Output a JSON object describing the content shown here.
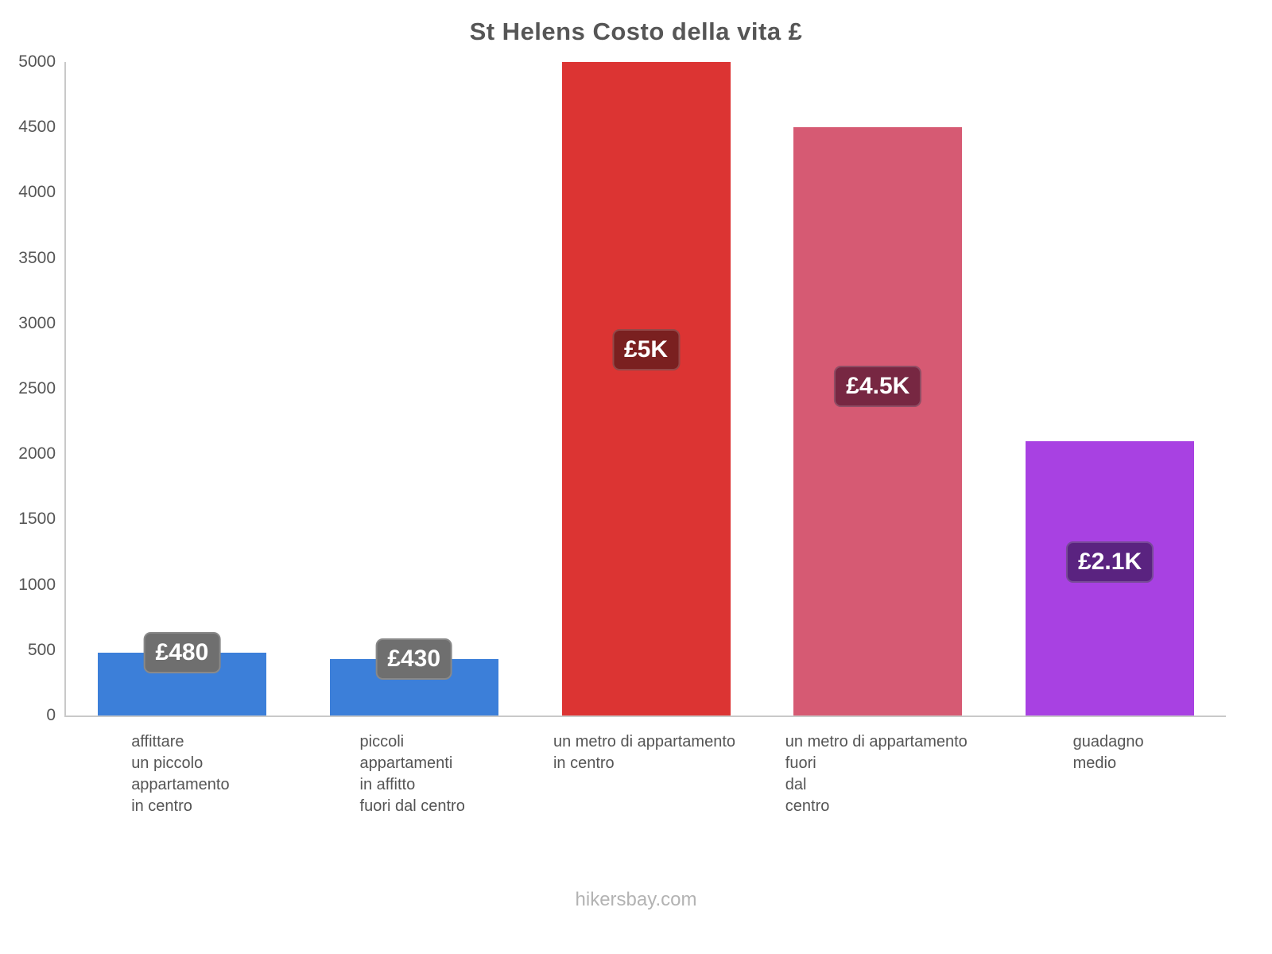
{
  "title": "St Helens Costo della vita £",
  "footer": "hikersbay.com",
  "chart_data": {
    "type": "bar",
    "title": "St Helens Costo della vita £",
    "categories": [
      "affittare\nun piccolo\nappartamento\nin centro",
      "piccoli\nappartamenti\nin affitto\nfuori dal centro",
      "un metro di appartamento\nin centro",
      "un metro di appartamento\nfuori\ndal\ncentro",
      "guadagno\nmedio"
    ],
    "values": [
      480,
      430,
      5000,
      4500,
      2100
    ],
    "value_labels": [
      "£480",
      "£430",
      "£5K",
      "£4.5K",
      "£2.1K"
    ],
    "bar_colors": [
      "#3c7fd9",
      "#3c7fd9",
      "#dc3433",
      "#d65a73",
      "#a841e2"
    ],
    "badge_colors": [
      "#6f6f6f",
      "#6f6f6f",
      "#7a2020",
      "#772742",
      "#5a2380"
    ],
    "xlabel": "",
    "ylabel": "",
    "ylim": [
      0,
      5000
    ],
    "ytick_step": 500,
    "grid": false,
    "legend": false,
    "currency": "£",
    "footer": "hikersbay.com"
  }
}
